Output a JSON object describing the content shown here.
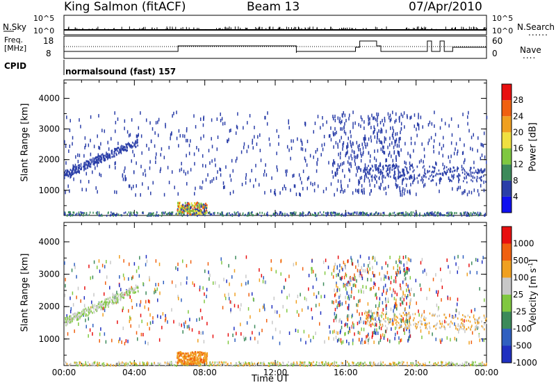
{
  "header": {
    "station": "King Salmon (fitACF)",
    "beam": "Beam 13",
    "date": "07/Apr/2010"
  },
  "status_panel": {
    "nsky_label": "N.Sky",
    "nsearch_label": "N.Search",
    "freq_label_line1": "Freq.",
    "freq_label_line2": "[MHz]",
    "nave_label": "Nave",
    "cpid_label": "CPID",
    "cpid_value": "normalsound (fast) 157",
    "left_ticks_top": [
      "10^5",
      "10^0"
    ],
    "right_ticks_top": [
      "10^5",
      "10^0"
    ],
    "freq_ticks": [
      "18",
      "8"
    ],
    "nave_ticks": [
      "60",
      "0"
    ],
    "dotted_marker": "......",
    "nave_dots": "...."
  },
  "colors": {
    "axis": "#000000",
    "scatter_blue": "#2a3ea8"
  },
  "chart_data": [
    {
      "type": "heatmap",
      "panel": "power",
      "ylabel": "Slant Range [km]",
      "xlabel": "",
      "ylim": [
        180,
        4600
      ],
      "y_ticks": [
        "1000",
        "2000",
        "3000",
        "4000"
      ],
      "y_tick_values": [
        1000,
        2000,
        3000,
        4000
      ],
      "x_range_hours": [
        0,
        24
      ],
      "colorbar": {
        "label": "Power [dB]",
        "ticks": [
          "4",
          "8",
          "12",
          "16",
          "20",
          "24",
          "28"
        ],
        "colors": [
          "#1010f0",
          "#2a3ea8",
          "#3c8a5a",
          "#7fc840",
          "#f0e040",
          "#f0a020",
          "#f06010",
          "#e81010"
        ]
      }
    },
    {
      "type": "heatmap",
      "panel": "velocity",
      "ylabel": "Slant Range [km]",
      "xlabel": "Time UT",
      "ylim": [
        180,
        4600
      ],
      "y_ticks": [
        "1000",
        "2000",
        "3000",
        "4000"
      ],
      "y_tick_values": [
        1000,
        2000,
        3000,
        4000
      ],
      "x_ticks": [
        "00:00",
        "04:00",
        "08:00",
        "12:00",
        "16:00",
        "20:00",
        "00:00"
      ],
      "x_tick_hours": [
        0,
        4,
        8,
        12,
        16,
        20,
        24
      ],
      "colorbar": {
        "label": "Velocity [m s",
        "label_sup": "-1",
        "label_end": "]",
        "ticks": [
          "1000",
          "500",
          "100",
          "25",
          "-25",
          "-100",
          "-500",
          "-1000"
        ],
        "colors": [
          "#2030c0",
          "#3060c0",
          "#3c8a5a",
          "#80c840",
          "#c8c8c8",
          "#f0a020",
          "#f06010",
          "#e81010"
        ]
      }
    }
  ]
}
